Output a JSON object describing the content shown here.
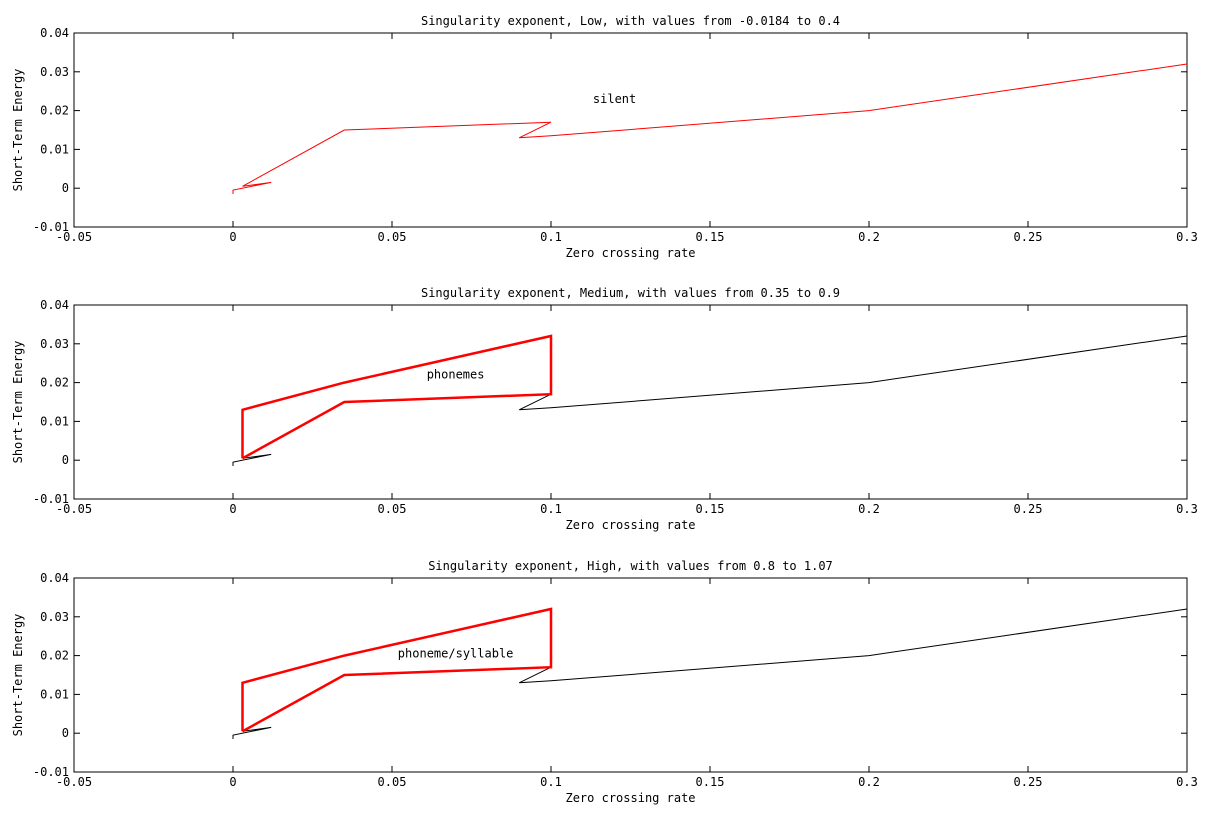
{
  "chart_data": [
    {
      "type": "line",
      "title": "Singularity exponent, Low, with values from -0.0184 to 0.4",
      "xlabel": "Zero crossing rate",
      "ylabel": "Short-Term Energy",
      "xlim": [
        -0.05,
        0.3
      ],
      "ylim": [
        -0.01,
        0.04
      ],
      "xticks": [
        -0.05,
        0,
        0.05,
        0.1,
        0.15,
        0.2,
        0.25,
        0.3
      ],
      "xtick_labels": [
        "-0.05",
        "0",
        "0.05",
        "0.1",
        "0.15",
        "0.2",
        "0.25",
        "0.3"
      ],
      "yticks": [
        -0.01,
        0,
        0.01,
        0.02,
        0.03,
        0.04
      ],
      "ytick_labels": [
        "-0.01",
        "0",
        "0.01",
        "0.02",
        "0.03",
        "0.04"
      ],
      "grid": false,
      "annotation": {
        "text": "silent",
        "x": 0.12,
        "y": 0.022
      },
      "series": [
        {
          "color": "#ff0000",
          "width": 1,
          "x": [
            0,
            0,
            0.012,
            0.003,
            0.035,
            0.1,
            0.09,
            0.1,
            0.2,
            0.3
          ],
          "y": [
            -0.0015,
            -0.0005,
            0.0015,
            0.0005,
            0.015,
            0.017,
            0.013,
            0.0135,
            0.02,
            0.032
          ]
        }
      ]
    },
    {
      "type": "line",
      "title": "Singularity exponent, Medium, with values from 0.35 to 0.9",
      "xlabel": "Zero crossing rate",
      "ylabel": "Short-Term Energy",
      "xlim": [
        -0.05,
        0.3
      ],
      "ylim": [
        -0.01,
        0.04
      ],
      "xticks": [
        -0.05,
        0,
        0.05,
        0.1,
        0.15,
        0.2,
        0.25,
        0.3
      ],
      "xtick_labels": [
        "-0.05",
        "0",
        "0.05",
        "0.1",
        "0.15",
        "0.2",
        "0.25",
        "0.3"
      ],
      "yticks": [
        -0.01,
        0,
        0.01,
        0.02,
        0.03,
        0.04
      ],
      "ytick_labels": [
        "-0.01",
        "0",
        "0.01",
        "0.02",
        "0.03",
        "0.04"
      ],
      "grid": false,
      "annotation": {
        "text": "phonemes",
        "x": 0.07,
        "y": 0.021
      },
      "series": [
        {
          "color": "#000000",
          "width": 1,
          "x": [
            0,
            0,
            0.012,
            0.003,
            0.035,
            0.1,
            0.09,
            0.1,
            0.2,
            0.3
          ],
          "y": [
            -0.0015,
            -0.0005,
            0.0015,
            0.0005,
            0.015,
            0.017,
            0.013,
            0.0135,
            0.02,
            0.032
          ]
        },
        {
          "color": "#ff0000",
          "width": 2.5,
          "x": [
            0.003,
            0.035,
            0.1,
            0.1,
            0.035,
            0.003,
            0.003
          ],
          "y": [
            0.0005,
            0.015,
            0.017,
            0.032,
            0.02,
            0.013,
            0.0005
          ]
        }
      ]
    },
    {
      "type": "line",
      "title": "Singularity exponent, High, with values from 0.8 to 1.07",
      "xlabel": "Zero crossing rate",
      "ylabel": "Short-Term Energy",
      "xlim": [
        -0.05,
        0.3
      ],
      "ylim": [
        -0.01,
        0.04
      ],
      "xticks": [
        -0.05,
        0,
        0.05,
        0.1,
        0.15,
        0.2,
        0.25,
        0.3
      ],
      "xtick_labels": [
        "-0.05",
        "0",
        "0.05",
        "0.1",
        "0.15",
        "0.2",
        "0.25",
        "0.3"
      ],
      "yticks": [
        -0.01,
        0,
        0.01,
        0.02,
        0.03,
        0.04
      ],
      "ytick_labels": [
        "-0.01",
        "0",
        "0.01",
        "0.02",
        "0.03",
        "0.04"
      ],
      "grid": false,
      "annotation": {
        "text": "phoneme/syllable",
        "x": 0.07,
        "y": 0.0195
      },
      "series": [
        {
          "color": "#000000",
          "width": 1,
          "x": [
            0,
            0,
            0.012,
            0.003,
            0.035,
            0.1,
            0.09,
            0.1,
            0.2,
            0.3
          ],
          "y": [
            -0.0015,
            -0.0005,
            0.0015,
            0.0005,
            0.015,
            0.017,
            0.013,
            0.0135,
            0.02,
            0.032
          ]
        },
        {
          "color": "#ff0000",
          "width": 2.5,
          "x": [
            0.003,
            0.035,
            0.1,
            0.1,
            0.035,
            0.003,
            0.003
          ],
          "y": [
            0.0005,
            0.015,
            0.017,
            0.032,
            0.02,
            0.013,
            0.0005
          ]
        }
      ]
    }
  ]
}
